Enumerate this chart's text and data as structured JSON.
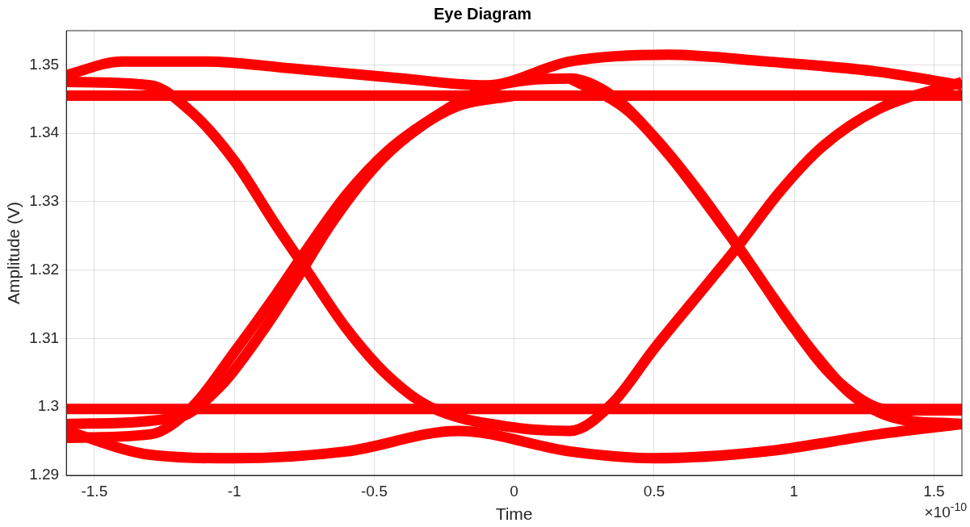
{
  "chart_data": {
    "type": "line",
    "title": "Eye Diagram",
    "xlabel": "Time",
    "ylabel": "Amplitude (V)",
    "annotations": [
      "×10$^{-10}$"
    ],
    "xlim": [
      -1.6,
      1.6
    ],
    "xticks": [
      -1.5,
      -1,
      -0.5,
      0,
      0.5,
      1,
      1.5
    ],
    "ylim": [
      1.29,
      1.355
    ],
    "yticks": [
      1.29,
      1.3,
      1.31,
      1.32,
      1.33,
      1.34,
      1.35
    ],
    "grid": true,
    "legend": false,
    "marker": "none",
    "line_style": "solid",
    "series": [
      {
        "color": "#ff0000",
        "x": [
          -1.6,
          1.6
        ],
        "values": [
          1.3455,
          1.3455
        ]
      },
      {
        "color": "#ff0000",
        "x": [
          -1.6,
          1.6
        ],
        "values": [
          1.2997,
          1.2997
        ]
      },
      {
        "color": "#ff0000",
        "x": [
          -1.6,
          -1.4,
          -1.1,
          -0.8,
          -0.4,
          -0.1,
          0.2,
          0.55,
          0.9,
          1.3,
          1.6
        ],
        "values": [
          1.3485,
          1.3505,
          1.3505,
          1.3495,
          1.348,
          1.347,
          1.3505,
          1.3515,
          1.3505,
          1.349,
          1.347
        ]
      },
      {
        "color": "#ff0000",
        "x": [
          -1.6,
          -1.3,
          -1,
          -0.6,
          -0.2,
          0.2,
          0.5,
          0.9,
          1.3,
          1.6
        ],
        "values": [
          1.2965,
          1.293,
          1.2925,
          1.2935,
          1.2965,
          1.2935,
          1.2925,
          1.2935,
          1.296,
          1.2975
        ]
      },
      {
        "color": "#ff0000",
        "x": [
          -1.6,
          -1.3,
          -1.15,
          -1,
          -0.85,
          -0.75,
          -0.6,
          -0.45,
          -0.3,
          0,
          0.2,
          0.35,
          0.5,
          0.65,
          0.8,
          0.95,
          1.1,
          1.3,
          1.6
        ],
        "values": [
          1.3475,
          1.347,
          1.343,
          1.336,
          1.3265,
          1.3205,
          1.3115,
          1.3045,
          1.3,
          1.297,
          1.2965,
          1.3005,
          1.3085,
          1.316,
          1.3235,
          1.3315,
          1.338,
          1.3435,
          1.3475
        ]
      },
      {
        "color": "#ff0000",
        "x": [
          -1.6,
          -1.3,
          -1.15,
          -1,
          -0.85,
          -0.75,
          -0.6,
          -0.45,
          -0.3,
          -0.1,
          0.2,
          0.35,
          0.5,
          0.65,
          0.8,
          0.9,
          1.05,
          1.2,
          1.35,
          1.6
        ],
        "values": [
          1.2955,
          1.296,
          1.3,
          1.308,
          1.3165,
          1.3225,
          1.331,
          1.3375,
          1.342,
          1.3465,
          1.348,
          1.3455,
          1.3395,
          1.332,
          1.3235,
          1.3175,
          1.309,
          1.302,
          1.2985,
          1.2975
        ]
      },
      {
        "color": "#ff0000",
        "x": [
          -1.6,
          -1.2,
          -1.05,
          -0.9,
          -0.78,
          -0.65,
          -0.5,
          -0.35,
          -0.2,
          0
        ],
        "values": [
          1.2975,
          1.2985,
          1.303,
          1.311,
          1.3185,
          1.327,
          1.335,
          1.3405,
          1.344,
          1.3455
        ]
      },
      {
        "color": "#ff0000",
        "x": [
          0.2,
          0.4,
          0.55,
          0.7,
          0.85,
          1,
          1.15,
          1.35,
          1.6
        ],
        "values": [
          1.348,
          1.3435,
          1.337,
          1.329,
          1.3205,
          1.3115,
          1.304,
          1.2995,
          1.2995
        ]
      }
    ]
  }
}
